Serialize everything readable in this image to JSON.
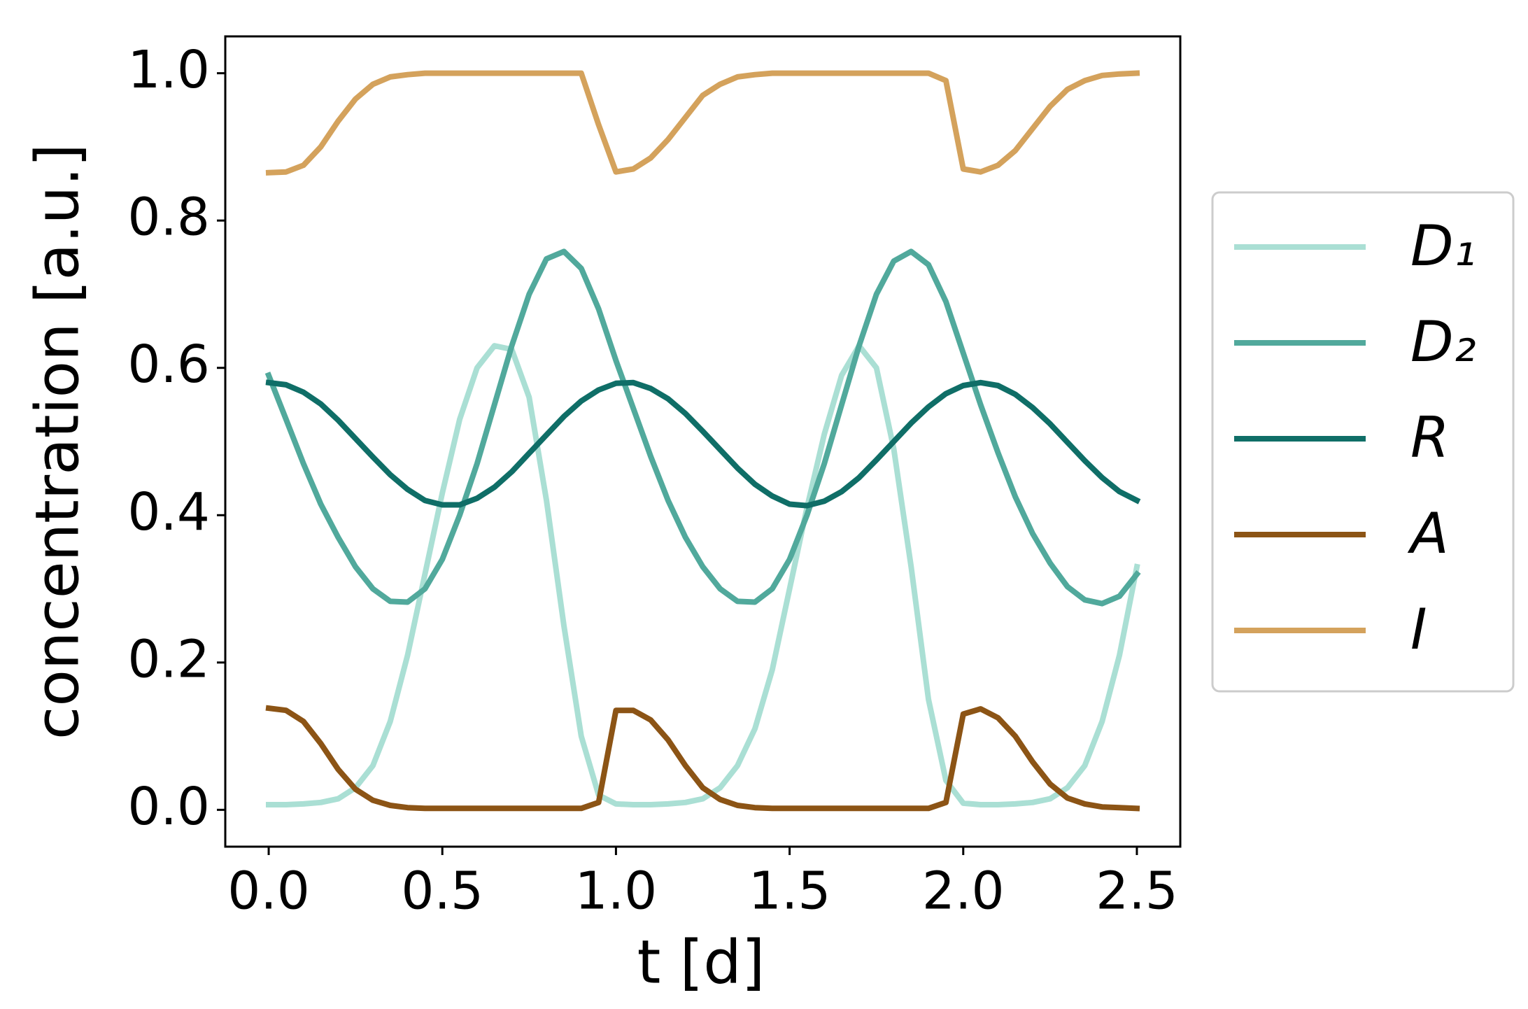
{
  "chart_data": {
    "type": "line",
    "xlabel": "t [d]",
    "ylabel": "concentration [a.u.]",
    "xlim": [
      -0.125,
      2.625
    ],
    "ylim": [
      -0.05,
      1.05
    ],
    "xticks": [
      {
        "value": 0,
        "label": "0.0"
      },
      0.5,
      {
        "value": 1,
        "label": "1.0"
      },
      1.5,
      {
        "value": 2,
        "label": "2.0"
      },
      2.5
    ],
    "yticks": [
      {
        "value": 0,
        "label": "0.0"
      },
      0.2,
      0.4,
      0.6,
      0.8,
      {
        "value": 1,
        "label": "1.0"
      }
    ],
    "grid": false,
    "legend": "outside right",
    "x": [
      0,
      0.05,
      0.1,
      0.15,
      0.2,
      0.25,
      0.3,
      0.35,
      0.4,
      0.45,
      0.5,
      0.55,
      0.6,
      0.65,
      0.7,
      0.75,
      0.8,
      0.85,
      0.9,
      0.95,
      1.0,
      1.05,
      1.1,
      1.15,
      1.2,
      1.25,
      1.3,
      1.35,
      1.4,
      1.45,
      1.5,
      1.55,
      1.6,
      1.65,
      1.7,
      1.75,
      1.8,
      1.85,
      1.9,
      1.95,
      2.0,
      2.05,
      2.1,
      2.15,
      2.2,
      2.25,
      2.3,
      2.35,
      2.4,
      2.45,
      2.5
    ],
    "series": [
      {
        "name": "D₁",
        "color": "#aadfd4",
        "values": [
          0.007,
          0.007,
          0.008,
          0.01,
          0.015,
          0.03,
          0.06,
          0.12,
          0.21,
          0.32,
          0.43,
          0.53,
          0.6,
          0.63,
          0.625,
          0.56,
          0.42,
          0.25,
          0.1,
          0.02,
          0.008,
          0.007,
          0.007,
          0.008,
          0.01,
          0.015,
          0.03,
          0.06,
          0.11,
          0.19,
          0.3,
          0.41,
          0.51,
          0.59,
          0.63,
          0.6,
          0.49,
          0.33,
          0.15,
          0.04,
          0.009,
          0.007,
          0.007,
          0.008,
          0.01,
          0.015,
          0.03,
          0.06,
          0.12,
          0.21,
          0.33
        ]
      },
      {
        "name": "D₂",
        "color": "#51a99c",
        "values": [
          0.59,
          0.53,
          0.47,
          0.415,
          0.37,
          0.33,
          0.3,
          0.283,
          0.282,
          0.3,
          0.34,
          0.4,
          0.47,
          0.55,
          0.63,
          0.7,
          0.748,
          0.758,
          0.735,
          0.68,
          0.61,
          0.545,
          0.48,
          0.42,
          0.37,
          0.33,
          0.3,
          0.283,
          0.282,
          0.3,
          0.34,
          0.4,
          0.47,
          0.55,
          0.63,
          0.7,
          0.745,
          0.758,
          0.74,
          0.69,
          0.62,
          0.55,
          0.485,
          0.425,
          0.375,
          0.335,
          0.303,
          0.285,
          0.28,
          0.29,
          0.32
        ]
      },
      {
        "name": "R",
        "color": "#0f6e67",
        "values": [
          0.58,
          0.577,
          0.567,
          0.551,
          0.529,
          0.504,
          0.479,
          0.455,
          0.435,
          0.42,
          0.414,
          0.414,
          0.423,
          0.438,
          0.459,
          0.484,
          0.509,
          0.534,
          0.555,
          0.57,
          0.579,
          0.58,
          0.572,
          0.558,
          0.538,
          0.514,
          0.489,
          0.464,
          0.442,
          0.426,
          0.415,
          0.413,
          0.419,
          0.432,
          0.451,
          0.475,
          0.5,
          0.525,
          0.547,
          0.565,
          0.576,
          0.58,
          0.576,
          0.564,
          0.546,
          0.524,
          0.499,
          0.474,
          0.451,
          0.432,
          0.42
        ]
      },
      {
        "name": "A",
        "color": "#8c5415",
        "values": [
          0.138,
          0.135,
          0.12,
          0.09,
          0.055,
          0.028,
          0.013,
          0.006,
          0.003,
          0.002,
          0.002,
          0.002,
          0.002,
          0.002,
          0.002,
          0.002,
          0.002,
          0.002,
          0.002,
          0.01,
          0.135,
          0.135,
          0.122,
          0.095,
          0.06,
          0.03,
          0.014,
          0.006,
          0.003,
          0.002,
          0.002,
          0.002,
          0.002,
          0.002,
          0.002,
          0.002,
          0.002,
          0.002,
          0.002,
          0.01,
          0.13,
          0.137,
          0.125,
          0.1,
          0.065,
          0.035,
          0.016,
          0.008,
          0.004,
          0.003,
          0.002
        ]
      },
      {
        "name": "I",
        "color": "#d4a25c",
        "values": [
          0.865,
          0.866,
          0.875,
          0.9,
          0.935,
          0.965,
          0.985,
          0.995,
          0.998,
          1.0,
          1.0,
          1.0,
          1.0,
          1.0,
          1.0,
          1.0,
          1.0,
          1.0,
          1.0,
          0.93,
          0.866,
          0.87,
          0.885,
          0.91,
          0.94,
          0.97,
          0.985,
          0.995,
          0.998,
          1.0,
          1.0,
          1.0,
          1.0,
          1.0,
          1.0,
          1.0,
          1.0,
          1.0,
          1.0,
          0.99,
          0.87,
          0.866,
          0.875,
          0.895,
          0.925,
          0.955,
          0.978,
          0.99,
          0.997,
          0.999,
          1.0
        ]
      }
    ]
  }
}
